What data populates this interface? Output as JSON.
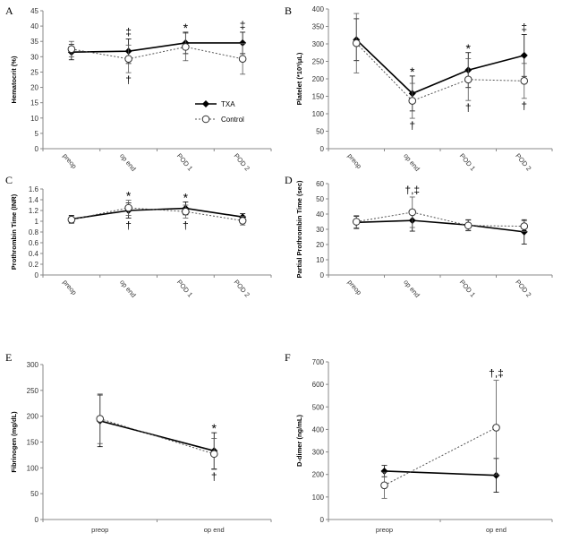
{
  "legend": {
    "txa": "TXA",
    "control": "Control"
  },
  "chart_data": [
    {
      "panel": "A",
      "type": "line",
      "ylabel": "Hematocrit (%)",
      "categories": [
        "preop",
        "op end",
        "POD 1",
        "POD 2"
      ],
      "yticks": [
        0,
        5,
        10,
        15,
        20,
        25,
        30,
        35,
        40,
        45
      ],
      "ylim": [
        0,
        45
      ],
      "series": [
        {
          "name": "TXA",
          "values": [
            31.5,
            31.8,
            34.5,
            34.5
          ],
          "err": [
            2.5,
            4.0,
            3.5,
            3.5
          ]
        },
        {
          "name": "Control",
          "values": [
            32.5,
            29.3,
            33.2,
            29.3
          ],
          "err": [
            2.5,
            4.5,
            4.5,
            5.0
          ]
        }
      ],
      "annotations": [
        {
          "cat": 1,
          "above": "‡",
          "below": "†"
        },
        {
          "cat": 2,
          "above": "*",
          "below": ""
        },
        {
          "cat": 3,
          "above": "‡",
          "below": ""
        }
      ]
    },
    {
      "panel": "B",
      "type": "line",
      "ylabel": "Platelet (*10³/μL)",
      "categories": [
        "preop",
        "op end",
        "POD 1",
        "POD 2"
      ],
      "yticks": [
        0,
        50,
        100,
        150,
        200,
        250,
        300,
        350,
        400
      ],
      "ylim": [
        0,
        400
      ],
      "series": [
        {
          "name": "TXA",
          "values": [
            312,
            158,
            225,
            267
          ],
          "err": [
            60,
            50,
            50,
            60
          ]
        },
        {
          "name": "Control",
          "values": [
            302,
            137,
            198,
            194
          ],
          "err": [
            85,
            50,
            60,
            50
          ]
        }
      ],
      "annotations": [
        {
          "cat": 1,
          "above": "*",
          "below": "†"
        },
        {
          "cat": 2,
          "above": "*",
          "below": "†"
        },
        {
          "cat": 3,
          "above": "‡",
          "below": "†"
        }
      ]
    },
    {
      "panel": "C",
      "type": "line",
      "ylabel": "Prothrombin Time (INR)",
      "categories": [
        "preop",
        "op end",
        "POD 1",
        "POD 2"
      ],
      "yticks": [
        0,
        0.2,
        0.4,
        0.6,
        0.8,
        1,
        1.2,
        1.4,
        1.6
      ],
      "ylim": [
        0,
        1.6
      ],
      "series": [
        {
          "name": "TXA",
          "values": [
            1.04,
            1.2,
            1.24,
            1.08
          ],
          "err": [
            0.07,
            0.14,
            0.12,
            0.06
          ]
        },
        {
          "name": "Control",
          "values": [
            1.03,
            1.25,
            1.18,
            1.01
          ],
          "err": [
            0.07,
            0.14,
            0.12,
            0.08
          ]
        }
      ],
      "annotations": [
        {
          "cat": 1,
          "above": "*",
          "below": "†"
        },
        {
          "cat": 2,
          "above": "*",
          "below": "†"
        }
      ]
    },
    {
      "panel": "D",
      "type": "line",
      "ylabel": "Partial Prothrombin Time (sec)",
      "categories": [
        "preop",
        "op end",
        "POD 1",
        "POD 2"
      ],
      "yticks": [
        0,
        10,
        20,
        30,
        40,
        50,
        60
      ],
      "ylim": [
        0,
        60
      ],
      "series": [
        {
          "name": "TXA",
          "values": [
            34.5,
            35.8,
            32.8,
            28.3
          ],
          "err": [
            4,
            7,
            3.5,
            8
          ]
        },
        {
          "name": "Control",
          "values": [
            35.0,
            41.2,
            32.5,
            32.0
          ],
          "err": [
            4,
            10,
            3.5,
            3.5
          ]
        }
      ],
      "annotations": [
        {
          "cat": 1,
          "above": "†,‡",
          "below": ""
        }
      ]
    },
    {
      "panel": "E",
      "type": "line",
      "ylabel": "Fibrinogen (mg/dL)",
      "categories": [
        "preop",
        "op end"
      ],
      "yticks": [
        0,
        50,
        100,
        150,
        200,
        250,
        300
      ],
      "ylim": [
        0,
        300
      ],
      "series": [
        {
          "name": "TXA",
          "values": [
            191,
            133
          ],
          "err": [
            50,
            35
          ]
        },
        {
          "name": "Control",
          "values": [
            195,
            127
          ],
          "err": [
            48,
            30
          ]
        }
      ],
      "annotations": [
        {
          "cat": 1,
          "above": "*",
          "below": "†"
        }
      ]
    },
    {
      "panel": "F",
      "type": "line",
      "ylabel": "D-dimer (ng/mL)",
      "categories": [
        "preop",
        "op end"
      ],
      "yticks": [
        0,
        100,
        200,
        300,
        400,
        500,
        600,
        700
      ],
      "ylim": [
        0,
        700
      ],
      "series": [
        {
          "name": "TXA",
          "values": [
            215,
            196
          ],
          "err": [
            25,
            75
          ]
        },
        {
          "name": "Control",
          "values": [
            152,
            408
          ],
          "err": [
            58,
            210
          ]
        }
      ],
      "annotations": [
        {
          "cat": 1,
          "above": "†,‡",
          "below": ""
        }
      ]
    }
  ]
}
